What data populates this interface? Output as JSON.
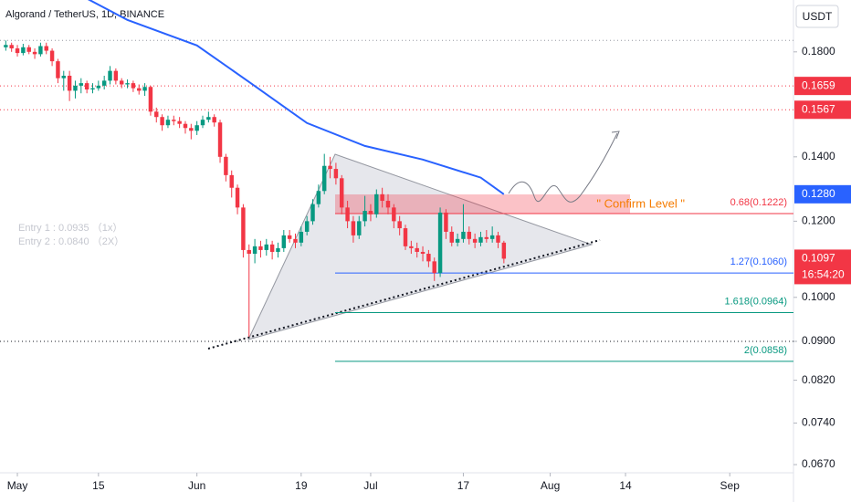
{
  "chart_data": {
    "type": "candlestick",
    "title": "Algorand / TetherUS, 1D, BINANCE",
    "currency": "USDT",
    "log_scale": true,
    "up_color": "#089981",
    "down_color": "#f23645",
    "xlim": [
      "04-28",
      "09-12"
    ],
    "xticks": [
      {
        "value": "05-01",
        "label": "May"
      },
      {
        "value": "05-15",
        "label": "15"
      },
      {
        "value": "06-01",
        "label": "Jun"
      },
      {
        "value": "06-19",
        "label": "19"
      },
      {
        "value": "07-01",
        "label": "Jul"
      },
      {
        "value": "07-17",
        "label": "17"
      },
      {
        "value": "08-01",
        "label": "Aug"
      },
      {
        "value": "08-14",
        "label": "14"
      },
      {
        "value": "09-01",
        "label": "Sep"
      }
    ],
    "ylim": [
      0.0657,
      0.2038
    ],
    "yticks": [
      {
        "value": 0.18,
        "label": "0.1800"
      },
      {
        "value": 0.14,
        "label": "0.1400"
      },
      {
        "value": 0.12,
        "label": "0.1200"
      },
      {
        "value": 0.1,
        "label": "0.1000"
      },
      {
        "value": 0.09,
        "label": "0.0900"
      },
      {
        "value": 0.082,
        "label": "0.0820"
      },
      {
        "value": 0.074,
        "label": "0.0740"
      },
      {
        "value": 0.067,
        "label": "0.0670"
      }
    ],
    "x": [
      "04-29",
      "04-30",
      "05-01",
      "05-02",
      "05-03",
      "05-04",
      "05-05",
      "05-06",
      "05-07",
      "05-08",
      "05-09",
      "05-10",
      "05-11",
      "05-12",
      "05-13",
      "05-14",
      "05-15",
      "05-16",
      "05-17",
      "05-18",
      "05-19",
      "05-20",
      "05-21",
      "05-22",
      "05-23",
      "05-24",
      "05-25",
      "05-26",
      "05-27",
      "05-28",
      "05-29",
      "05-30",
      "05-31",
      "06-01",
      "06-02",
      "06-03",
      "06-04",
      "06-05",
      "06-06",
      "06-07",
      "06-08",
      "06-09",
      "06-10",
      "06-11",
      "06-12",
      "06-13",
      "06-14",
      "06-15",
      "06-16",
      "06-17",
      "06-18",
      "06-19",
      "06-20",
      "06-21",
      "06-22",
      "06-23",
      "06-24",
      "06-25",
      "06-26",
      "06-27",
      "06-28",
      "06-29",
      "06-30",
      "07-01",
      "07-02",
      "07-03",
      "07-04",
      "07-05",
      "07-06",
      "07-07",
      "07-08",
      "07-09",
      "07-10",
      "07-11",
      "07-12",
      "07-13",
      "07-14",
      "07-15",
      "07-16",
      "07-17",
      "07-18",
      "07-19",
      "07-20",
      "07-21",
      "07-22",
      "07-23",
      "07-24"
    ],
    "open": [
      0.182,
      0.183,
      0.1815,
      0.1795,
      0.182,
      0.18,
      0.179,
      0.1825,
      0.1805,
      0.176,
      0.169,
      0.17,
      0.164,
      0.166,
      0.167,
      0.1645,
      0.165,
      0.166,
      0.168,
      0.172,
      0.168,
      0.1665,
      0.167,
      0.165,
      0.164,
      0.1655,
      0.156,
      0.154,
      0.151,
      0.153,
      0.1525,
      0.1515,
      0.15,
      0.149,
      0.151,
      0.153,
      0.154,
      0.152,
      0.14,
      0.134,
      0.13,
      0.124,
      0.112,
      0.111,
      0.113,
      0.112,
      0.1135,
      0.1115,
      0.1125,
      0.116,
      0.115,
      0.114,
      0.117,
      0.12,
      0.125,
      0.129,
      0.137,
      0.136,
      0.133,
      0.124,
      0.12,
      0.116,
      0.12,
      0.123,
      0.122,
      0.128,
      0.126,
      0.124,
      0.12,
      0.118,
      0.113,
      0.1125,
      0.1115,
      0.111,
      0.109,
      0.106,
      0.1225,
      0.117,
      0.114,
      0.115,
      0.117,
      0.115,
      0.114,
      0.1155,
      0.115,
      0.116,
      0.114
    ],
    "high": [
      0.185,
      0.184,
      0.183,
      0.1835,
      0.183,
      0.1815,
      0.184,
      0.184,
      0.1815,
      0.177,
      0.172,
      0.172,
      0.168,
      0.169,
      0.168,
      0.167,
      0.168,
      0.17,
      0.174,
      0.173,
      0.169,
      0.1685,
      0.168,
      0.1665,
      0.167,
      0.166,
      0.1575,
      0.155,
      0.1545,
      0.1545,
      0.154,
      0.1525,
      0.1515,
      0.1525,
      0.1545,
      0.156,
      0.155,
      0.153,
      0.141,
      0.1355,
      0.131,
      0.125,
      0.1135,
      0.115,
      0.1145,
      0.115,
      0.1145,
      0.114,
      0.1175,
      0.1175,
      0.1165,
      0.1185,
      0.1215,
      0.1265,
      0.131,
      0.141,
      0.14,
      0.138,
      0.134,
      0.126,
      0.1215,
      0.1215,
      0.1275,
      0.125,
      0.1295,
      0.13,
      0.128,
      0.125,
      0.1215,
      0.119,
      0.1145,
      0.114,
      0.113,
      0.112,
      0.11,
      0.124,
      0.1235,
      0.1185,
      0.1165,
      0.125,
      0.1185,
      0.1165,
      0.117,
      0.1175,
      0.1185,
      0.117,
      0.1145
    ],
    "low": [
      0.1805,
      0.18,
      0.178,
      0.1785,
      0.179,
      0.177,
      0.178,
      0.179,
      0.174,
      0.167,
      0.164,
      0.16,
      0.161,
      0.163,
      0.163,
      0.163,
      0.164,
      0.1645,
      0.1665,
      0.1665,
      0.165,
      0.165,
      0.1635,
      0.1625,
      0.162,
      0.1545,
      0.152,
      0.149,
      0.15,
      0.151,
      0.15,
      0.148,
      0.146,
      0.1475,
      0.15,
      0.152,
      0.1505,
      0.138,
      0.132,
      0.127,
      0.122,
      0.11,
      0.091,
      0.1085,
      0.11,
      0.1105,
      0.1095,
      0.11,
      0.1115,
      0.114,
      0.1125,
      0.113,
      0.116,
      0.119,
      0.124,
      0.128,
      0.133,
      0.131,
      0.122,
      0.118,
      0.114,
      0.115,
      0.1185,
      0.12,
      0.121,
      0.124,
      0.122,
      0.118,
      0.116,
      0.112,
      0.111,
      0.11,
      0.109,
      0.1075,
      0.104,
      0.105,
      0.115,
      0.113,
      0.113,
      0.114,
      0.1135,
      0.1125,
      0.113,
      0.114,
      0.114,
      0.1125,
      0.1085
    ],
    "close": [
      0.183,
      0.1815,
      0.1795,
      0.182,
      0.18,
      0.179,
      0.1825,
      0.1805,
      0.176,
      0.169,
      0.17,
      0.164,
      0.166,
      0.167,
      0.1645,
      0.165,
      0.166,
      0.168,
      0.172,
      0.168,
      0.1665,
      0.167,
      0.165,
      0.164,
      0.1655,
      0.156,
      0.154,
      0.151,
      0.153,
      0.1525,
      0.1515,
      0.15,
      0.149,
      0.151,
      0.153,
      0.154,
      0.152,
      0.14,
      0.134,
      0.13,
      0.124,
      0.112,
      0.111,
      0.113,
      0.112,
      0.1135,
      0.1115,
      0.1125,
      0.116,
      0.115,
      0.114,
      0.117,
      0.12,
      0.125,
      0.129,
      0.137,
      0.136,
      0.133,
      0.124,
      0.12,
      0.116,
      0.12,
      0.123,
      0.122,
      0.128,
      0.126,
      0.124,
      0.12,
      0.118,
      0.113,
      0.1125,
      0.1115,
      0.111,
      0.109,
      0.106,
      0.1225,
      0.117,
      0.114,
      0.115,
      0.117,
      0.115,
      0.114,
      0.1155,
      0.115,
      0.116,
      0.114,
      0.1097
    ],
    "ma": {
      "color": "#2962ff",
      "x": [
        "05-12",
        "05-20",
        "06-01",
        "06-10",
        "06-20",
        "06-30",
        "07-10",
        "07-20",
        "07-24"
      ],
      "values": [
        0.206,
        0.1943,
        0.1828,
        0.1675,
        0.1518,
        0.1437,
        0.1391,
        0.1332,
        0.128
      ]
    },
    "h_lines": [
      {
        "value": 0.185,
        "color": "#9598a1"
      },
      {
        "value": 0.1659,
        "color": "#f23645"
      },
      {
        "value": 0.1567,
        "color": "#f23645"
      },
      {
        "value": 0.09,
        "color": "#131722"
      }
    ],
    "badges": [
      {
        "value": 0.1659,
        "label": "0.1659",
        "color": "#f23645"
      },
      {
        "value": 0.1567,
        "label": "0.1567",
        "color": "#f23645"
      },
      {
        "value": 0.128,
        "label": "0.1280",
        "color": "#2962ff"
      },
      {
        "value": 0.1097,
        "label": "0.1097",
        "color": "#f23645"
      }
    ],
    "countdown": "16:54:20",
    "fib_levels": [
      {
        "value": 0.1222,
        "label": "0.68(0.1222)",
        "color": "#f23645"
      },
      {
        "value": 0.106,
        "label": "1.27(0.1060)",
        "color": "#2962ff"
      },
      {
        "value": 0.0964,
        "label": "1.618(0.0964)",
        "color": "#089981"
      },
      {
        "value": 0.0858,
        "label": "2(0.0858)",
        "color": "#089981"
      }
    ],
    "confirm_label": "\" Confirm Level \"",
    "entries": [
      "Entry 1 : 0.0935 （1x）",
      "Entry 2 : 0.0840 （2X）"
    ]
  }
}
